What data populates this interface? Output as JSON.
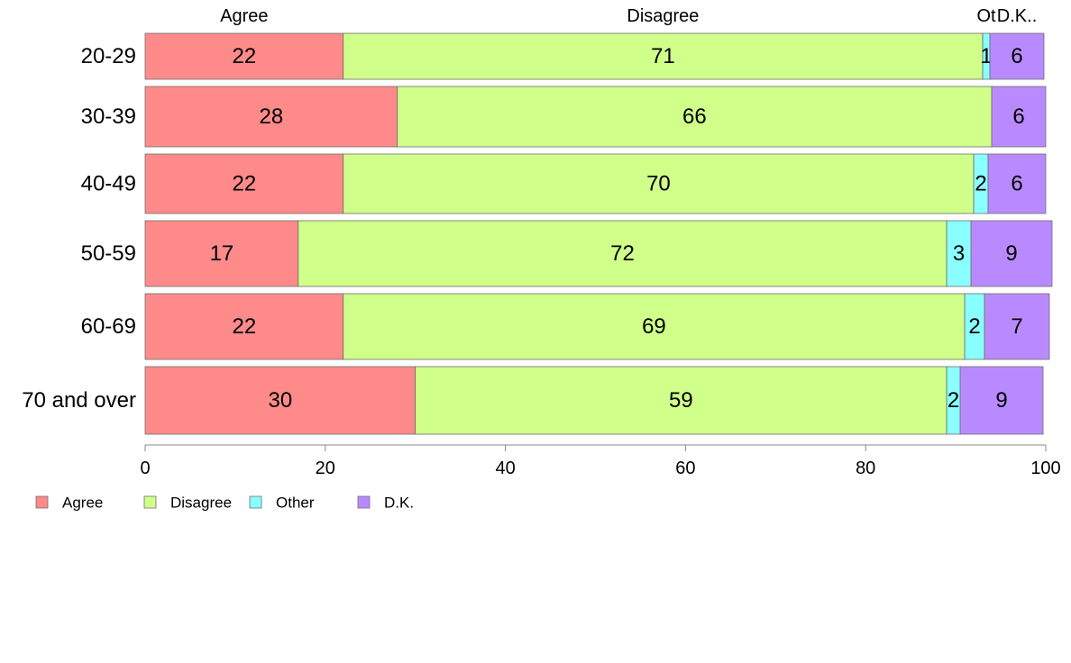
{
  "chart_data": {
    "type": "bar",
    "orientation": "horizontal",
    "stacked": true,
    "categories": [
      "20-29",
      "30-39",
      "40-49",
      "50-59",
      "60-69",
      "70 and over"
    ],
    "series": [
      {
        "name": "Agree",
        "color": "#ff8a8a",
        "values": [
          22,
          28,
          22,
          17,
          22,
          30
        ],
        "labels": [
          "22",
          "28",
          "22",
          "17",
          "22",
          "30"
        ]
      },
      {
        "name": "Disagree",
        "color": "#d0ff8a",
        "values": [
          71,
          66,
          70,
          72,
          69,
          59
        ],
        "labels": [
          "71",
          "66",
          "70",
          "72",
          "69",
          "59"
        ]
      },
      {
        "name": "Other",
        "color": "#8affff",
        "values": [
          0.8,
          0,
          1.6,
          2.7,
          2.2,
          1.5
        ],
        "labels": [
          "1",
          "",
          "2",
          "3",
          "2",
          "2"
        ]
      },
      {
        "name": "D.K.",
        "color": "#b98aff",
        "values": [
          6,
          6,
          6.4,
          9,
          7.2,
          9.2
        ],
        "labels": [
          "6",
          "6",
          "6",
          "9",
          "7",
          "9"
        ]
      }
    ],
    "top_labels": [
      "Agree",
      "Disagree",
      "Ot",
      "D.K.."
    ],
    "xlim": [
      0,
      100
    ],
    "xticks": [
      "0",
      "20",
      "40",
      "60",
      "80",
      "100"
    ],
    "legend": {
      "position": "bottom-left",
      "entries": [
        "Agree",
        "Disagree",
        "Other",
        "D.K."
      ]
    },
    "grid": false,
    "title": "",
    "xlabel": "",
    "ylabel": ""
  }
}
